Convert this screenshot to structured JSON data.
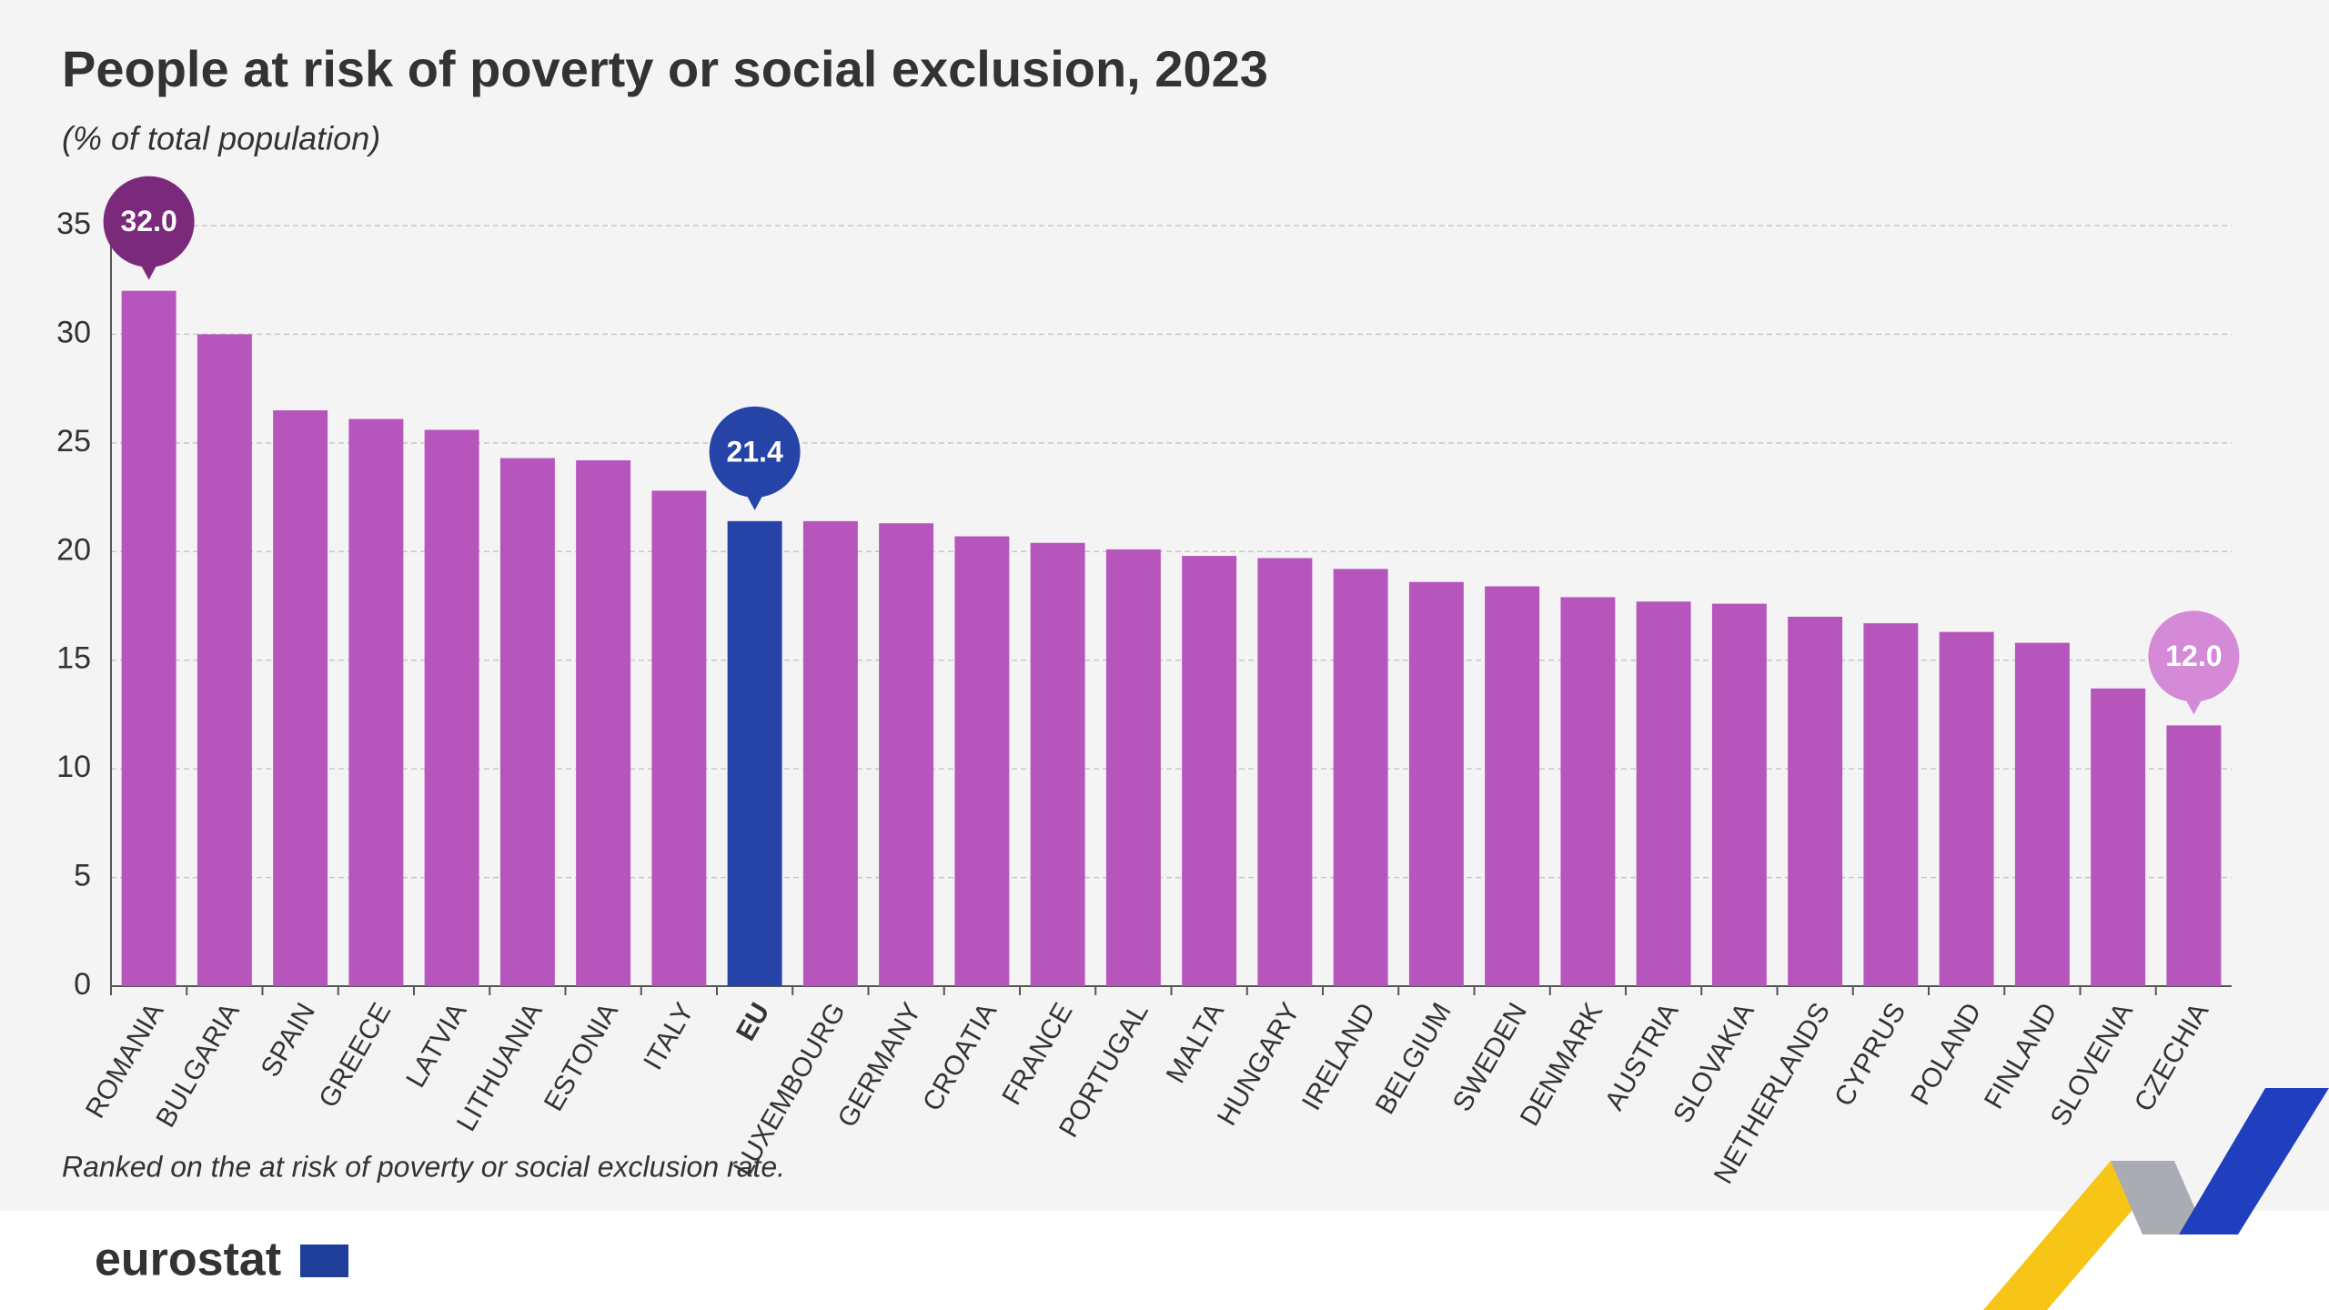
{
  "chart_data": {
    "type": "bar",
    "title": "People at risk of poverty or social exclusion, 2023",
    "subtitle": "(% of total population)",
    "footnote": "Ranked on the at risk of poverty or social exclusion rate.",
    "source": "eurostat",
    "categories": [
      "ROMANIA",
      "BULGARIA",
      "SPAIN",
      "GREECE",
      "LATVIA",
      "LITHUANIA",
      "ESTONIA",
      "ITALY",
      "EU",
      "LUXEMBOURG",
      "GERMANY",
      "CROATIA",
      "FRANCE",
      "PORTUGAL",
      "MALTA",
      "HUNGARY",
      "IRELAND",
      "BELGIUM",
      "SWEDEN",
      "DENMARK",
      "AUSTRIA",
      "SLOVAKIA",
      "NETHERLANDS",
      "CYPRUS",
      "POLAND",
      "FINLAND",
      "SLOVENIA",
      "CZECHIA"
    ],
    "values": [
      32.0,
      30.0,
      26.5,
      26.1,
      25.6,
      24.3,
      24.2,
      22.8,
      21.4,
      21.4,
      21.3,
      20.7,
      20.4,
      20.1,
      19.8,
      19.7,
      19.2,
      18.6,
      18.4,
      17.9,
      17.7,
      17.6,
      17.0,
      16.7,
      16.3,
      15.8,
      13.7,
      12.0
    ],
    "value_labels": [
      "32.0",
      null,
      null,
      null,
      null,
      null,
      null,
      null,
      "21.4",
      null,
      null,
      null,
      null,
      null,
      null,
      null,
      null,
      null,
      null,
      null,
      null,
      null,
      null,
      null,
      null,
      null,
      null,
      "12.0"
    ],
    "colors": [
      "#b656bc",
      "#b656bc",
      "#b656bc",
      "#b656bc",
      "#b656bc",
      "#b656bc",
      "#b656bc",
      "#b656bc",
      "#2644a8",
      "#b656bc",
      "#b656bc",
      "#b656bc",
      "#b656bc",
      "#b656bc",
      "#b656bc",
      "#b656bc",
      "#b656bc",
      "#b656bc",
      "#b656bc",
      "#b656bc",
      "#b656bc",
      "#b656bc",
      "#b656bc",
      "#b656bc",
      "#b656bc",
      "#b656bc",
      "#b656bc",
      "#b656bc"
    ],
    "label_colors": [
      "#7b2a7b",
      null,
      null,
      null,
      null,
      null,
      null,
      null,
      "#2644a8",
      null,
      null,
      null,
      null,
      null,
      null,
      null,
      null,
      null,
      null,
      null,
      null,
      null,
      null,
      null,
      null,
      null,
      null,
      "#d58ad8"
    ],
    "ylim": [
      0,
      35
    ],
    "yticks": [
      0,
      5,
      10,
      15,
      20,
      25,
      30,
      35
    ],
    "grid": true
  }
}
